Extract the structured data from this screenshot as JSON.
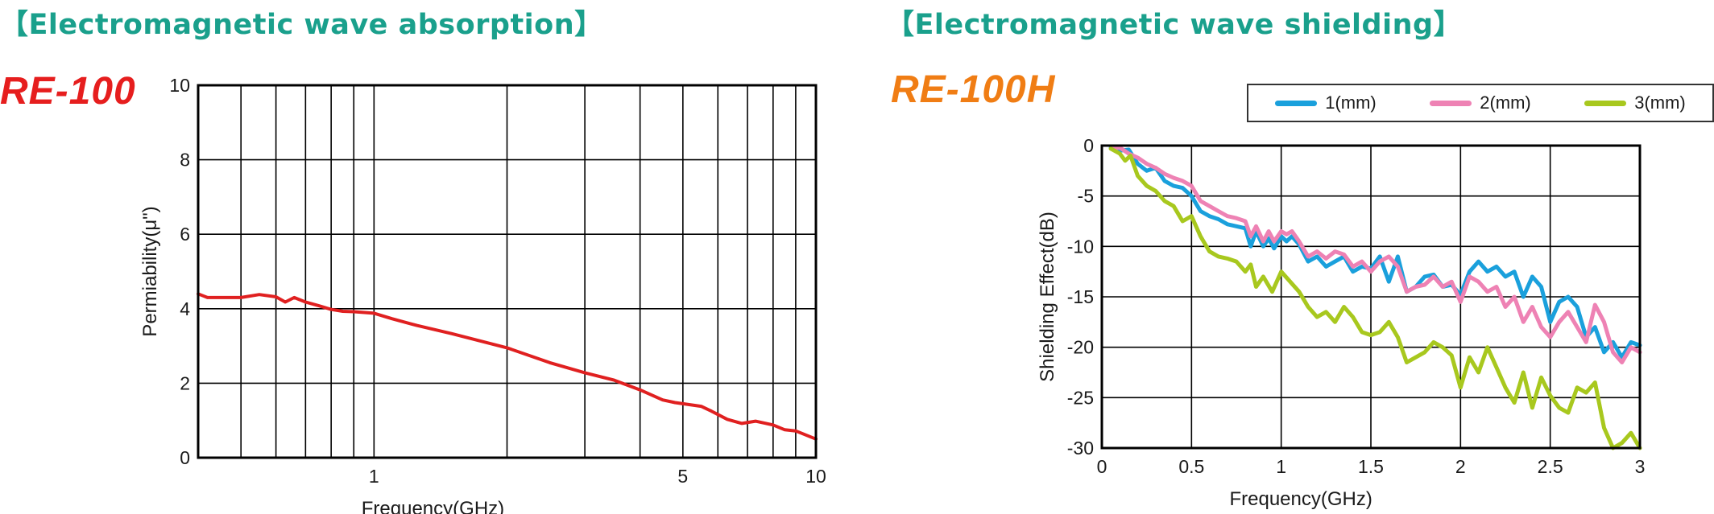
{
  "colors": {
    "heading": "#1aa08c",
    "title_left": "#e61e1e",
    "title_right": "#f07d14",
    "axis": "#000000",
    "grid": "#000000"
  },
  "left": {
    "heading": "【Electromagnetic wave absorption】",
    "product": "RE-100"
  },
  "right": {
    "heading": "【Electromagnetic wave shielding】",
    "product": "RE-100H"
  },
  "chart_data": [
    {
      "type": "line",
      "xlabel": "Frequency(GHz)",
      "ylabel": "Permiability(μ\")",
      "xscale": "log",
      "xlim": [
        0.4,
        10
      ],
      "ylim": [
        0,
        10
      ],
      "x_ticks": [
        1,
        5,
        10
      ],
      "x_tick_labels": [
        "1",
        "5",
        "10"
      ],
      "x_gridlines": [
        0.5,
        0.6,
        0.7,
        0.8,
        0.9,
        1,
        2,
        3,
        4,
        5,
        6,
        7,
        8,
        9,
        10
      ],
      "y_ticks": [
        0,
        2,
        4,
        6,
        8,
        10
      ],
      "y_tick_labels": [
        "0",
        "2",
        "4",
        "6",
        "8",
        "10"
      ],
      "grid": true,
      "series": [
        {
          "color": "#e02020",
          "x": [
            0.4,
            0.42,
            0.45,
            0.5,
            0.55,
            0.6,
            0.63,
            0.66,
            0.7,
            0.75,
            0.8,
            0.85,
            0.9,
            1.0,
            1.1,
            1.25,
            1.5,
            2.0,
            2.5,
            3.0,
            3.5,
            4.0,
            4.5,
            4.8,
            5.0,
            5.5,
            5.8,
            6.3,
            6.8,
            7.3,
            8.0,
            8.5,
            9.0,
            10.0
          ],
          "y": [
            4.4,
            4.3,
            4.3,
            4.3,
            4.38,
            4.32,
            4.18,
            4.3,
            4.18,
            4.08,
            3.98,
            3.93,
            3.92,
            3.88,
            3.73,
            3.55,
            3.33,
            2.95,
            2.55,
            2.28,
            2.08,
            1.82,
            1.55,
            1.48,
            1.45,
            1.38,
            1.25,
            1.03,
            0.92,
            0.98,
            0.88,
            0.75,
            0.72,
            0.5
          ]
        }
      ]
    },
    {
      "type": "line",
      "xlabel": "Frequency(GHz)",
      "ylabel": "Shielding Effect(dB)",
      "xlim": [
        0,
        3
      ],
      "ylim": [
        -30,
        0
      ],
      "x_ticks": [
        0,
        0.5,
        1,
        1.5,
        2,
        2.5,
        3
      ],
      "x_tick_labels": [
        "0",
        "0.5",
        "1",
        "1.5",
        "2",
        "2.5",
        "3"
      ],
      "y_ticks": [
        0,
        -5,
        -10,
        -15,
        -20,
        -25,
        -30
      ],
      "y_tick_labels": [
        "0",
        "-5",
        "-10",
        "-15",
        "-20",
        "-25",
        "-30"
      ],
      "grid": true,
      "legend_position": "top-right",
      "series": [
        {
          "name": "1(mm)",
          "color": "#1aa0dc",
          "x": [
            0.05,
            0.1,
            0.15,
            0.2,
            0.25,
            0.3,
            0.35,
            0.4,
            0.45,
            0.5,
            0.55,
            0.6,
            0.65,
            0.7,
            0.75,
            0.8,
            0.83,
            0.86,
            0.9,
            0.93,
            0.96,
            1.0,
            1.03,
            1.06,
            1.1,
            1.15,
            1.2,
            1.25,
            1.3,
            1.35,
            1.4,
            1.45,
            1.5,
            1.55,
            1.6,
            1.65,
            1.7,
            1.75,
            1.8,
            1.85,
            1.9,
            1.95,
            2.0,
            2.05,
            2.1,
            2.15,
            2.2,
            2.25,
            2.3,
            2.35,
            2.4,
            2.45,
            2.5,
            2.55,
            2.6,
            2.65,
            2.7,
            2.75,
            2.8,
            2.85,
            2.9,
            2.95,
            3.0
          ],
          "y": [
            -0.2,
            -0.5,
            -0.4,
            -1.8,
            -2.5,
            -2.2,
            -3.5,
            -4.0,
            -4.2,
            -5.0,
            -6.5,
            -7.0,
            -7.3,
            -7.8,
            -8.0,
            -8.2,
            -10.0,
            -8.5,
            -10.0,
            -9.2,
            -10.2,
            -9.0,
            -9.5,
            -9.0,
            -9.8,
            -11.5,
            -11.0,
            -12.0,
            -11.5,
            -11.0,
            -12.5,
            -12.0,
            -12.2,
            -11.0,
            -13.5,
            -11.0,
            -14.5,
            -14.0,
            -13.0,
            -12.8,
            -14.0,
            -13.8,
            -14.8,
            -12.5,
            -11.5,
            -12.5,
            -12.0,
            -13.0,
            -12.5,
            -15.0,
            -13.0,
            -14.0,
            -17.5,
            -15.5,
            -15.0,
            -16.0,
            -19.0,
            -18.0,
            -20.5,
            -19.5,
            -21.0,
            -19.5,
            -19.8
          ]
        },
        {
          "name": "2(mm)",
          "color": "#ee82b4",
          "x": [
            0.05,
            0.1,
            0.15,
            0.2,
            0.25,
            0.3,
            0.35,
            0.4,
            0.45,
            0.5,
            0.55,
            0.6,
            0.65,
            0.7,
            0.75,
            0.8,
            0.83,
            0.86,
            0.9,
            0.93,
            0.96,
            1.0,
            1.03,
            1.06,
            1.1,
            1.15,
            1.2,
            1.25,
            1.3,
            1.35,
            1.4,
            1.45,
            1.5,
            1.55,
            1.6,
            1.65,
            1.7,
            1.75,
            1.8,
            1.85,
            1.9,
            1.95,
            2.0,
            2.05,
            2.1,
            2.15,
            2.2,
            2.25,
            2.3,
            2.35,
            2.4,
            2.45,
            2.5,
            2.55,
            2.6,
            2.65,
            2.7,
            2.75,
            2.8,
            2.85,
            2.9,
            2.95,
            3.0
          ],
          "y": [
            -0.3,
            -0.2,
            -0.8,
            -1.2,
            -1.8,
            -2.2,
            -2.8,
            -3.2,
            -3.5,
            -4.0,
            -5.5,
            -6.0,
            -6.5,
            -7.0,
            -7.2,
            -7.5,
            -9.0,
            -8.0,
            -9.5,
            -8.5,
            -9.5,
            -8.5,
            -8.8,
            -8.5,
            -9.5,
            -11.0,
            -10.5,
            -11.2,
            -10.5,
            -10.8,
            -12.0,
            -11.5,
            -12.5,
            -11.5,
            -11.0,
            -12.0,
            -14.5,
            -14.0,
            -13.8,
            -13.0,
            -14.0,
            -13.5,
            -15.5,
            -13.0,
            -13.5,
            -14.5,
            -14.0,
            -16.0,
            -15.0,
            -17.5,
            -16.0,
            -18.0,
            -19.0,
            -17.5,
            -16.5,
            -18.0,
            -19.5,
            -15.8,
            -17.5,
            -20.5,
            -21.5,
            -20.0,
            -20.5
          ]
        },
        {
          "name": "3(mm)",
          "color": "#a8c81e",
          "x": [
            0.05,
            0.1,
            0.13,
            0.16,
            0.2,
            0.25,
            0.3,
            0.35,
            0.4,
            0.45,
            0.5,
            0.55,
            0.6,
            0.65,
            0.7,
            0.75,
            0.8,
            0.83,
            0.86,
            0.9,
            0.95,
            1.0,
            1.05,
            1.1,
            1.15,
            1.2,
            1.25,
            1.3,
            1.35,
            1.4,
            1.45,
            1.5,
            1.55,
            1.6,
            1.65,
            1.7,
            1.75,
            1.8,
            1.85,
            1.9,
            1.95,
            2.0,
            2.05,
            2.1,
            2.15,
            2.2,
            2.25,
            2.3,
            2.35,
            2.4,
            2.45,
            2.5,
            2.55,
            2.6,
            2.65,
            2.7,
            2.75,
            2.8,
            2.85,
            2.9,
            2.95,
            3.0
          ],
          "y": [
            -0.3,
            -0.8,
            -1.5,
            -1.0,
            -3.0,
            -4.0,
            -4.5,
            -5.5,
            -6.0,
            -7.5,
            -7.0,
            -9.0,
            -10.5,
            -11.0,
            -11.2,
            -11.5,
            -12.5,
            -11.8,
            -14.0,
            -13.0,
            -14.5,
            -12.5,
            -13.5,
            -14.5,
            -16.0,
            -17.0,
            -16.5,
            -17.5,
            -16.0,
            -17.0,
            -18.5,
            -18.8,
            -18.5,
            -17.5,
            -19.0,
            -21.5,
            -21.0,
            -20.5,
            -19.5,
            -20.0,
            -20.8,
            -24.0,
            -21.0,
            -22.5,
            -20.0,
            -22.0,
            -24.0,
            -25.5,
            -22.5,
            -26.0,
            -23.0,
            -24.8,
            -26.0,
            -26.5,
            -24.0,
            -24.5,
            -23.5,
            -28.0,
            -30.0,
            -29.5,
            -28.5,
            -30.0
          ]
        }
      ]
    }
  ]
}
